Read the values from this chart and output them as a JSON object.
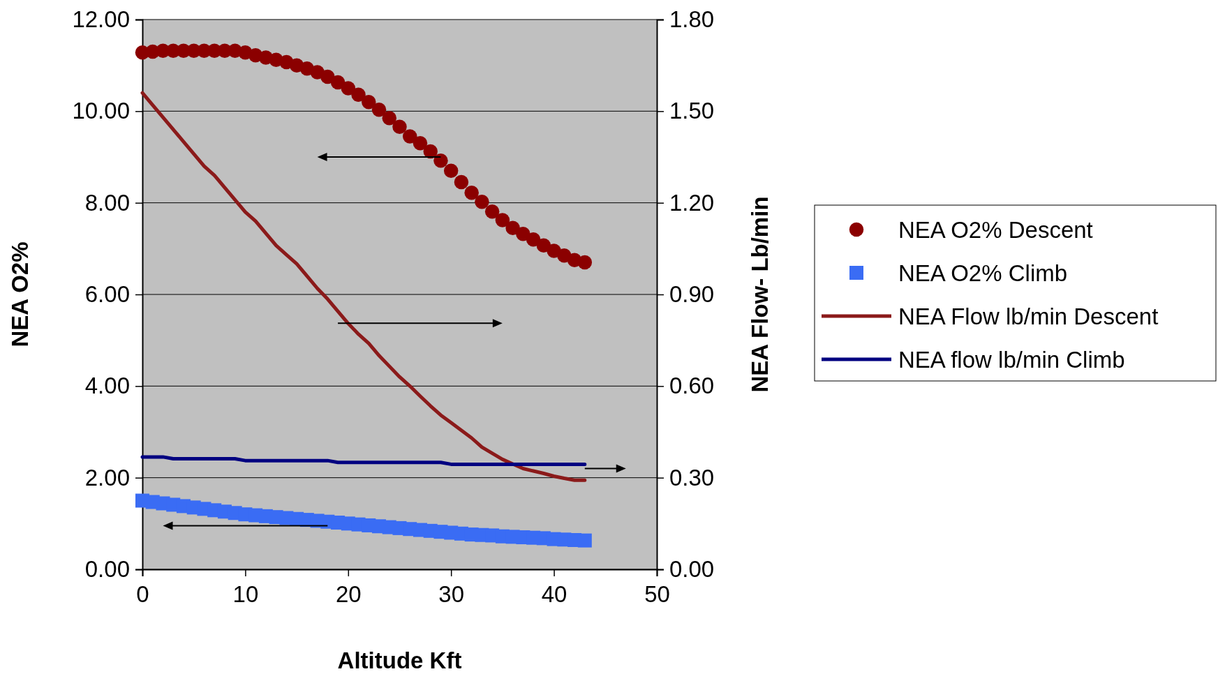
{
  "chart_data": {
    "type": "scatter",
    "xlabel": "Altitude Kft",
    "ylabel": "NEA O2%",
    "y2label": "NEA Flow- Lb/min",
    "x": [
      0,
      1,
      2,
      3,
      4,
      5,
      6,
      7,
      8,
      9,
      10,
      11,
      12,
      13,
      14,
      15,
      16,
      17,
      18,
      19,
      20,
      21,
      22,
      23,
      24,
      25,
      26,
      27,
      28,
      29,
      30,
      31,
      32,
      33,
      34,
      35,
      36,
      37,
      38,
      39,
      40,
      41,
      42,
      43
    ],
    "xlim": [
      0,
      50
    ],
    "xticks": [
      0,
      10,
      20,
      30,
      40,
      50
    ],
    "ylim": [
      0,
      12
    ],
    "yticks": [
      {
        "value": 0,
        "label": "0.00"
      },
      {
        "value": 2,
        "label": "2.00"
      },
      {
        "value": 4,
        "label": "4.00"
      },
      {
        "value": 6,
        "label": "6.00"
      },
      {
        "value": 8,
        "label": "8.00"
      },
      {
        "value": 10,
        "label": "10.00"
      },
      {
        "value": 12,
        "label": "12.00"
      }
    ],
    "y2lim": [
      0,
      1.8
    ],
    "y2ticks": [
      {
        "value": 0,
        "label": "0.00"
      },
      {
        "value": 0.3,
        "label": "0.30"
      },
      {
        "value": 0.6,
        "label": "0.60"
      },
      {
        "value": 0.9,
        "label": "0.90"
      },
      {
        "value": 1.2,
        "label": "1.20"
      },
      {
        "value": 1.5,
        "label": "1.50"
      },
      {
        "value": 1.8,
        "label": "1.80"
      }
    ],
    "grid": "y",
    "legend": "right",
    "series": [
      {
        "name": "NEA O2% Descent",
        "type": "scatter",
        "marker": "circle",
        "color": "#8b0000",
        "values": [
          11.28,
          11.3,
          11.32,
          11.32,
          11.32,
          11.32,
          11.32,
          11.32,
          11.32,
          11.32,
          11.28,
          11.22,
          11.17,
          11.12,
          11.07,
          11.0,
          10.93,
          10.85,
          10.75,
          10.63,
          10.5,
          10.36,
          10.2,
          10.03,
          9.85,
          9.66,
          9.45,
          9.3,
          9.12,
          8.92,
          8.7,
          8.45,
          8.22,
          8.02,
          7.81,
          7.62,
          7.45,
          7.32,
          7.2,
          7.07,
          6.95,
          6.85,
          6.75,
          6.7
        ]
      },
      {
        "name": "NEA O2% Climb",
        "type": "scatter",
        "marker": "square",
        "color": "#3a6cf4",
        "values": [
          1.5,
          1.47,
          1.44,
          1.41,
          1.38,
          1.35,
          1.32,
          1.29,
          1.26,
          1.23,
          1.2,
          1.18,
          1.16,
          1.14,
          1.12,
          1.1,
          1.08,
          1.06,
          1.04,
          1.02,
          1.0,
          0.98,
          0.96,
          0.94,
          0.92,
          0.9,
          0.88,
          0.86,
          0.84,
          0.82,
          0.8,
          0.78,
          0.76,
          0.75,
          0.74,
          0.72,
          0.71,
          0.7,
          0.69,
          0.68,
          0.66,
          0.65,
          0.64,
          0.63
        ]
      },
      {
        "name": "NEA Flow lb/min Descent",
        "type": "line",
        "axis": "y2",
        "marker": "none",
        "color": "#8b1a1a",
        "values": [
          1.56,
          1.52,
          1.48,
          1.44,
          1.4,
          1.36,
          1.32,
          1.29,
          1.25,
          1.21,
          1.17,
          1.14,
          1.1,
          1.06,
          1.03,
          1.0,
          0.96,
          0.92,
          0.885,
          0.845,
          0.805,
          0.77,
          0.74,
          0.7,
          0.665,
          0.63,
          0.6,
          0.567,
          0.535,
          0.505,
          0.48,
          0.455,
          0.43,
          0.4,
          0.38,
          0.36,
          0.345,
          0.33,
          0.322,
          0.314,
          0.305,
          0.298,
          0.292,
          0.292
        ]
      },
      {
        "name": "NEA flow lb/min Climb",
        "type": "line",
        "axis": "y2",
        "marker": "none",
        "color": "#000080",
        "values": [
          0.368,
          0.368,
          0.368,
          0.362,
          0.362,
          0.362,
          0.362,
          0.362,
          0.362,
          0.362,
          0.356,
          0.356,
          0.356,
          0.356,
          0.356,
          0.356,
          0.356,
          0.356,
          0.356,
          0.35,
          0.35,
          0.35,
          0.35,
          0.35,
          0.35,
          0.35,
          0.35,
          0.35,
          0.35,
          0.35,
          0.344,
          0.344,
          0.344,
          0.344,
          0.344,
          0.344,
          0.344,
          0.344,
          0.344,
          0.344,
          0.344,
          0.344,
          0.344,
          0.344
        ]
      }
    ]
  }
}
